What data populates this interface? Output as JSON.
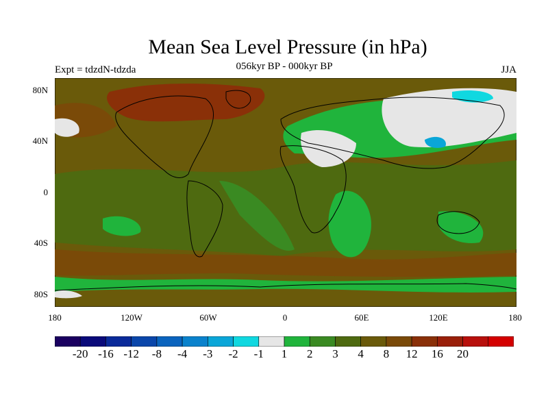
{
  "title": "Mean Sea Level Pressure (in hPa)",
  "subtitle": "056kyr BP - 000kyr BP",
  "experiment": "Expt = tdzdN-tdzda",
  "season": "JJA",
  "y_ticks": [
    "80N",
    "40N",
    "0",
    "40S",
    "80S"
  ],
  "x_ticks": [
    "180",
    "120W",
    "60W",
    "0",
    "60E",
    "120E",
    "180"
  ],
  "colorbar": {
    "colors": [
      "#1a0060",
      "#0a0a7a",
      "#0a2a9a",
      "#0a46aa",
      "#0a64be",
      "#0a82cc",
      "#0aa6d8",
      "#10d8e0",
      "#e6e6e6",
      "#20b43c",
      "#3a8a22",
      "#4e6a10",
      "#6a5a0a",
      "#7a4a08",
      "#8a3008",
      "#9a200a",
      "#b8100c",
      "#d40000"
    ],
    "labels": [
      "-20",
      "-16",
      "-12",
      "-8",
      "-4",
      "-3",
      "-2",
      "-1",
      "1",
      "2",
      "3",
      "4",
      "8",
      "12",
      "16",
      "20"
    ]
  },
  "map_palette": {
    "base": "#6a5a0a",
    "green": "#20b43c",
    "olive": "#4e6a10",
    "darkgreen": "#3a8a22",
    "brown": "#7a4a08",
    "red": "#8a3008",
    "white": "#e6e6e6",
    "cyan": "#10d8e0",
    "ltblue": "#0aa6d8"
  }
}
